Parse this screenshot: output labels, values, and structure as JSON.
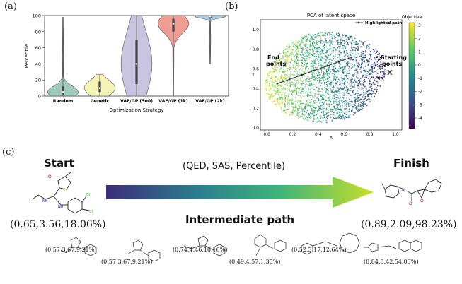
{
  "panels": {
    "a": "(a)",
    "b": "(b)",
    "c": "(c)"
  },
  "chart_data": [
    {
      "type": "violin",
      "title": "",
      "xlabel": "Optimization Strategy",
      "ylabel": "Percentile",
      "ylim": [
        0,
        100
      ],
      "yticks": [
        "0",
        "20",
        "40",
        "60",
        "80",
        "100"
      ],
      "categories": [
        "Random",
        "Genetic",
        "VAE/GP (500)",
        "VAE/GP (1k)",
        "VAE/GP (2k)"
      ],
      "series": [
        {
          "name": "Random",
          "color": "#7fb9a8",
          "min": 0,
          "q1": 2,
          "median": 5,
          "q3": 12,
          "max": 98
        },
        {
          "name": "Genetic",
          "color": "#f1ef9c",
          "min": 0,
          "q1": 5,
          "median": 10,
          "q3": 18,
          "max": 27
        },
        {
          "name": "VAE/GP (500)",
          "color": "#b7b0d6",
          "min": 0,
          "q1": 15,
          "median": 40,
          "q3": 70,
          "max": 100
        },
        {
          "name": "VAE/GP (1k)",
          "color": "#ea7b6e",
          "min": 0,
          "q1": 80,
          "median": 90,
          "q3": 96,
          "max": 100
        },
        {
          "name": "VAE/GP (2k)",
          "color": "#8fb8d6",
          "min": 40,
          "q1": 97,
          "median": 99,
          "q3": 100,
          "max": 100
        }
      ]
    },
    {
      "type": "scatter",
      "title": "PCA of latent space",
      "xlabel": "X",
      "ylabel": "Y",
      "xlim": [
        -0.05,
        1.05
      ],
      "ylim": [
        -0.02,
        1.1
      ],
      "xticks": [
        "0.0",
        "0.2",
        "0.4",
        "0.6",
        "0.8",
        "1.0"
      ],
      "yticks": [
        "0.0",
        "0.2",
        "0.4",
        "0.6",
        "0.8",
        "1.0"
      ],
      "legend": "Highlighted path",
      "colorbar_label": "Objective",
      "colorbar_ticks": [
        "3",
        "2",
        "1",
        "0",
        "-1",
        "-2",
        "-3",
        "-4"
      ],
      "colorbar_range": [
        -4.8,
        3.2
      ],
      "path_start": [
        0.66,
        0.72
      ],
      "path_end": [
        0.08,
        0.45
      ],
      "annotations": {
        "end": "End points",
        "start": "Starting points",
        "start_marker": "X"
      }
    }
  ],
  "flow": {
    "start_title": "Start",
    "finish_title": "Finish",
    "properties_label": "(QED, SAS, Percentile)",
    "intermediate_title": "Intermediate path",
    "start_values": "(0.65,3.56,18.06%)",
    "finish_values": "(0.89,2.09,98.23%)",
    "intermediates": [
      "(0.57,3.67,9.21%)",
      "(0.57,3.67,9.21%)",
      "(0.74,4.46,10.16%)",
      "(0.49,4.57,1.35%)",
      "(0.52,3.17,12.64%)",
      "(0.84,3.42,54.03%)"
    ],
    "arrow_colors": [
      "#3b2d7a",
      "#2c7f8e",
      "#3fb37a",
      "#c6e02a"
    ]
  }
}
